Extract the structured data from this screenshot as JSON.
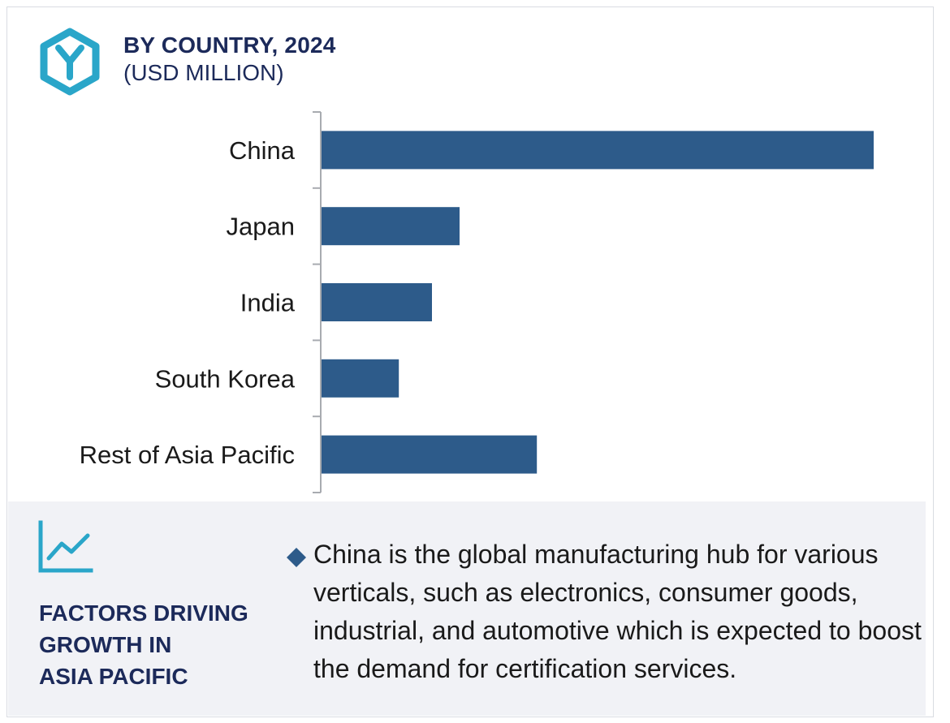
{
  "header": {
    "title": "BY COUNTRY, 2024",
    "subtitle": "(USD MILLION)",
    "logo_icon": "hexagon-y-logo-icon"
  },
  "colors": {
    "bar": "#2d5b8a",
    "accent": "#2aa6c9",
    "heading": "#1c2a5a",
    "panel_bg": "#f1f2f6"
  },
  "chart_data": {
    "type": "bar",
    "orientation": "horizontal",
    "categories": [
      "China",
      "Japan",
      "India",
      "South Korea",
      "Rest of Asia Pacific"
    ],
    "values": [
      100,
      25,
      20,
      14,
      39
    ],
    "value_note": "relative bar lengths (no values printed)",
    "xlim": [
      0,
      100
    ],
    "grid": false,
    "legend": "none"
  },
  "factors": {
    "icon": "trend-line-chart-icon",
    "heading_lines": [
      "FACTORS DRIVING",
      "GROWTH IN",
      "ASIA PACIFIC"
    ],
    "bullet_icon": "diamond-bullet-icon",
    "bullets": [
      "China is the global manufacturing hub for various verticals, such as electronics, consumer goods, industrial, and automotive which is expected to boost the demand for certification services."
    ]
  }
}
